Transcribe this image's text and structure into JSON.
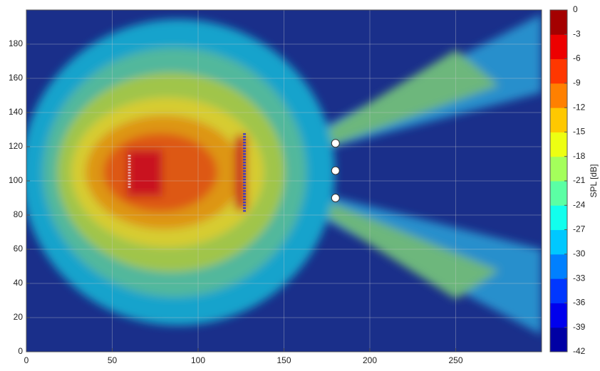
{
  "chart_data": {
    "type": "contour",
    "xlim": [
      0,
      300
    ],
    "xticks": [
      0,
      50,
      100,
      150,
      200,
      250
    ],
    "ylim": [
      0,
      200
    ],
    "yticks": [
      0,
      20,
      40,
      60,
      80,
      100,
      120,
      140,
      160,
      180
    ],
    "grid": true,
    "colormap": "jet",
    "colorbar": {
      "label": "SPL [dB]",
      "lim": [
        -42,
        0
      ],
      "ticks": [
        0,
        -3,
        -6,
        -9,
        -12,
        -15,
        -18,
        -21,
        -24,
        -27,
        -30,
        -33,
        -36,
        -39,
        -42
      ]
    },
    "sources": [
      {
        "x": [
          127,
          127
        ],
        "y": [
          82,
          128
        ]
      },
      {
        "x": [
          60,
          60
        ],
        "y": [
          96,
          116
        ]
      }
    ],
    "points": {
      "x": [
        180,
        180,
        180
      ],
      "y": [
        122,
        106,
        90
      ]
    }
  }
}
